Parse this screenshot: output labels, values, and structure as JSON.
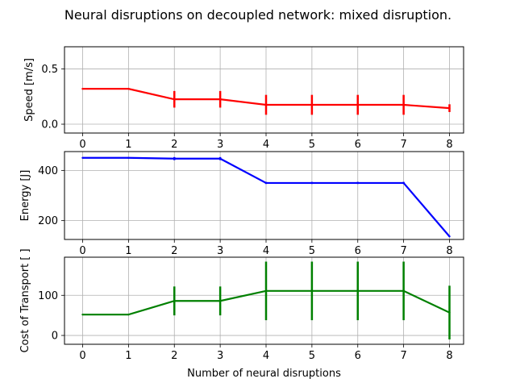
{
  "chart_data": {
    "type": "line",
    "title": "Neural disruptions on decoupled network: mixed disruption.",
    "xlabel": "Number of neural disruptions",
    "x": [
      0,
      1,
      2,
      3,
      4,
      5,
      6,
      7,
      8
    ],
    "grid": true,
    "panels": [
      {
        "ylabel": "Speed [m/s]",
        "color": "#ff0000",
        "ylim": [
          -0.08,
          0.7
        ],
        "yticks": [
          0.0,
          0.5
        ],
        "ytick_labels": [
          "0.0",
          "0.5"
        ],
        "values": [
          0.32,
          0.32,
          0.225,
          0.225,
          0.175,
          0.175,
          0.175,
          0.175,
          0.145
        ],
        "errors": [
          0.0,
          0.0,
          0.075,
          0.075,
          0.09,
          0.09,
          0.09,
          0.09,
          0.035
        ]
      },
      {
        "ylabel": "Energy [J]",
        "color": "#0000ff",
        "ylim": [
          125,
          475
        ],
        "yticks": [
          200,
          400
        ],
        "ytick_labels": [
          "200",
          "400"
        ],
        "values": [
          450,
          450,
          447,
          447,
          350,
          350,
          350,
          350,
          137
        ],
        "errors": [
          0,
          0,
          6,
          6,
          4,
          4,
          4,
          4,
          0
        ]
      },
      {
        "ylabel": "Cost of Transport [ ]",
        "color": "#008000",
        "ylim": [
          -22,
          195
        ],
        "yticks": [
          0,
          100
        ],
        "ytick_labels": [
          "0",
          "100"
        ],
        "values": [
          52,
          52,
          86,
          86,
          111,
          111,
          111,
          111,
          57
        ],
        "errors": [
          0,
          0,
          36,
          36,
          73,
          73,
          73,
          73,
          67
        ]
      }
    ]
  }
}
